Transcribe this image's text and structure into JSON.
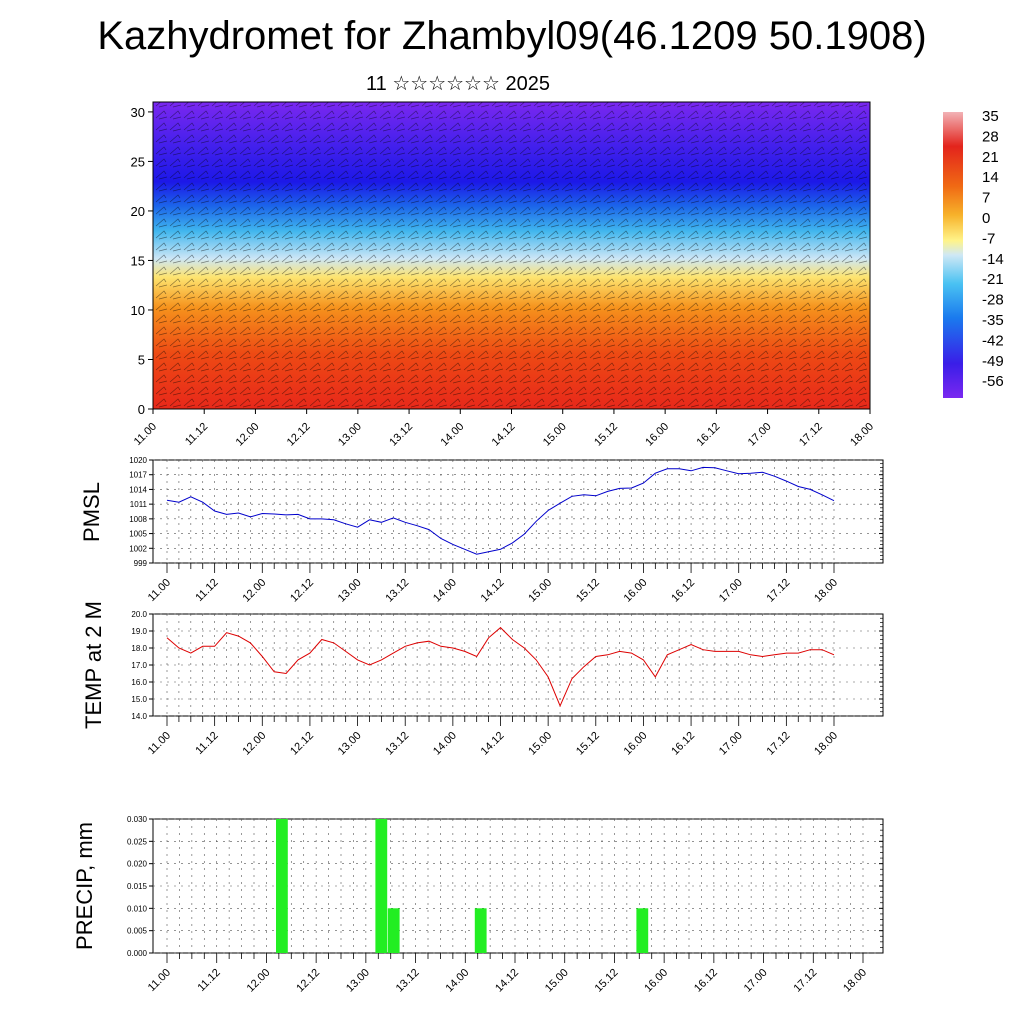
{
  "header": {
    "title": "Kazhydromet for Zhambyl09(46.1209 50.1908)",
    "subtitle": "11 ☆☆☆☆☆☆ 2025"
  },
  "chart_data": [
    {
      "id": "cross_section",
      "type": "heatmap",
      "xlabel": "",
      "ylabel": "",
      "x_tick_labels": [
        "11.00",
        "11.12",
        "12.00",
        "12.12",
        "13.00",
        "13.12",
        "14.00",
        "14.12",
        "15.00",
        "15.12",
        "16.00",
        "16.12",
        "17.00",
        "17.12",
        "18.00"
      ],
      "y_ticks": [
        0,
        5,
        10,
        15,
        20,
        25,
        30
      ],
      "ylim": [
        0,
        31
      ],
      "colorbar_labels": [
        "35",
        "28",
        "21",
        "14",
        "7",
        "0",
        "-7",
        "-14",
        "-21",
        "-28",
        "-35",
        "-42",
        "-49",
        "-56"
      ],
      "value_range": [
        -60,
        38
      ],
      "overlay": "wind barbs",
      "colors": {
        "low": "#6a1df0",
        "high": "#e8281a"
      }
    },
    {
      "id": "pmsl",
      "type": "line",
      "ylabel": "PMSL",
      "ylim": [
        999,
        1020
      ],
      "y_ticks": [
        999,
        1002,
        1005,
        1008,
        1011,
        1014,
        1017,
        1020
      ],
      "x_tick_labels": [
        "11.00",
        "11.12",
        "12.00",
        "12.12",
        "13.00",
        "13.12",
        "14.00",
        "14.12",
        "15.00",
        "15.12",
        "16.00",
        "16.12",
        "17.00",
        "17.12",
        "18.00"
      ],
      "x_step_hours": 3,
      "color": "#0000cc",
      "values": [
        1011.8,
        1011.4,
        1012.5,
        1011.4,
        1009.6,
        1008.9,
        1009.2,
        1008.4,
        1009.1,
        1009.0,
        1008.8,
        1008.9,
        1008.0,
        1008.0,
        1007.8,
        1007.0,
        1006.3,
        1007.8,
        1007.3,
        1008.2,
        1007.3,
        1006.6,
        1005.8,
        1004.0,
        1002.8,
        1001.8,
        1000.8,
        1001.3,
        1001.8,
        1003.1,
        1004.9,
        1007.5,
        1009.7,
        1011.2,
        1012.6,
        1012.9,
        1012.7,
        1013.6,
        1014.2,
        1014.3,
        1015.3,
        1017.3,
        1018.2,
        1018.2,
        1017.8,
        1018.5,
        1018.4,
        1017.8,
        1017.2,
        1017.3,
        1017.5,
        1016.7,
        1015.7,
        1014.6,
        1014.0,
        1012.9,
        1011.7
      ]
    },
    {
      "id": "temp2m",
      "type": "line",
      "ylabel": "TEMP at 2 M",
      "ylim": [
        14.0,
        20.0
      ],
      "y_ticks": [
        14.0,
        15.0,
        16.0,
        17.0,
        18.0,
        19.0,
        20.0
      ],
      "x_tick_labels": [
        "11.00",
        "11.12",
        "12.00",
        "12.12",
        "13.00",
        "13.12",
        "14.00",
        "14.12",
        "15.00",
        "15.12",
        "16.00",
        "16.12",
        "17.00",
        "17.12",
        "18.00"
      ],
      "x_step_hours": 3,
      "color": "#dd0000",
      "values": [
        18.6,
        18.0,
        17.7,
        18.1,
        18.1,
        18.9,
        18.7,
        18.3,
        17.5,
        16.6,
        16.5,
        17.3,
        17.7,
        18.5,
        18.3,
        17.8,
        17.3,
        17.0,
        17.3,
        17.7,
        18.1,
        18.3,
        18.4,
        18.1,
        18.0,
        17.8,
        17.5,
        18.6,
        19.2,
        18.5,
        18.0,
        17.3,
        16.3,
        14.6,
        16.2,
        16.9,
        17.5,
        17.6,
        17.8,
        17.7,
        17.3,
        16.3,
        17.6,
        17.9,
        18.2,
        17.9,
        17.8,
        17.8,
        17.8,
        17.6,
        17.5,
        17.6,
        17.7,
        17.7,
        17.9,
        17.9,
        17.6
      ]
    },
    {
      "id": "precip",
      "type": "bar",
      "ylabel": "PRECIP, mm",
      "ylim": [
        0,
        0.03
      ],
      "y_tick_labels": [
        "0.000",
        "0.005",
        "0.010",
        "0.015",
        "0.020",
        "0.025",
        "0.030"
      ],
      "x_tick_labels": [
        "11.00",
        "11.12",
        "12.00",
        "12.12",
        "13.00",
        "13.12",
        "14.00",
        "14.12",
        "15.00",
        "15.12",
        "16.00",
        "16.12",
        "17.00",
        "17.12",
        "18.00"
      ],
      "x_step_hours": 3,
      "color": "#22ee22",
      "bars": [
        {
          "slot": 9,
          "value": 0.03
        },
        {
          "slot": 17,
          "value": 0.03
        },
        {
          "slot": 18,
          "value": 0.01
        },
        {
          "slot": 25,
          "value": 0.01
        },
        {
          "slot": 38,
          "value": 0.01
        }
      ]
    }
  ]
}
